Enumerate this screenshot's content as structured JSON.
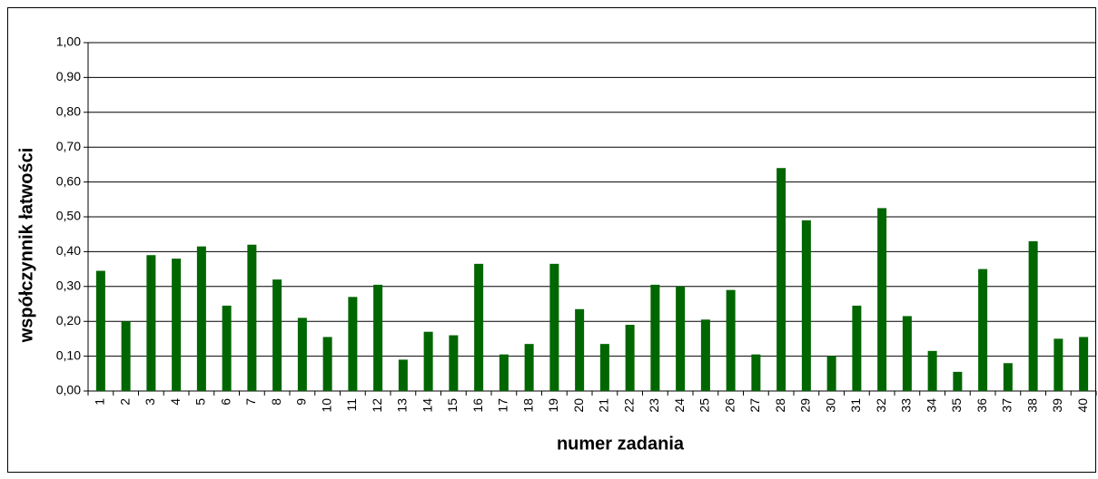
{
  "chart_data": {
    "type": "bar",
    "x_label": "numer zadania",
    "y_label": "współczynnik łatwości",
    "categories": [
      "1",
      "2",
      "3",
      "4",
      "5",
      "6",
      "7",
      "8",
      "9",
      "10",
      "11",
      "12",
      "13",
      "14",
      "15",
      "16",
      "17",
      "18",
      "19",
      "20",
      "21",
      "22",
      "23",
      "24",
      "25",
      "26",
      "27",
      "28",
      "29",
      "30",
      "31",
      "32",
      "33",
      "34",
      "35",
      "36",
      "37",
      "38",
      "39",
      "40"
    ],
    "values": [
      0.345,
      0.2,
      0.39,
      0.38,
      0.415,
      0.245,
      0.42,
      0.32,
      0.21,
      0.155,
      0.27,
      0.305,
      0.09,
      0.17,
      0.16,
      0.365,
      0.105,
      0.135,
      0.365,
      0.235,
      0.135,
      0.19,
      0.305,
      0.3,
      0.205,
      0.29,
      0.105,
      0.64,
      0.49,
      0.1,
      0.245,
      0.525,
      0.215,
      0.115,
      0.055,
      0.35,
      0.08,
      0.43,
      0.15,
      0.155
    ],
    "color": "#006600",
    "ylim": [
      0,
      1
    ],
    "yticks": [
      {
        "value": 0,
        "label": "0,00"
      },
      {
        "value": 0.1,
        "label": "0,10"
      },
      {
        "value": 0.2,
        "label": "0,20"
      },
      {
        "value": 0.3,
        "label": "0,30"
      },
      {
        "value": 0.4,
        "label": "0,40"
      },
      {
        "value": 0.5,
        "label": "0,50"
      },
      {
        "value": 0.6,
        "label": "0,60"
      },
      {
        "value": 0.7,
        "label": "0,70"
      },
      {
        "value": 0.8,
        "label": "0,80"
      },
      {
        "value": 0.9,
        "label": "0,90"
      },
      {
        "value": 1,
        "label": "1,00"
      }
    ],
    "grid": true
  }
}
